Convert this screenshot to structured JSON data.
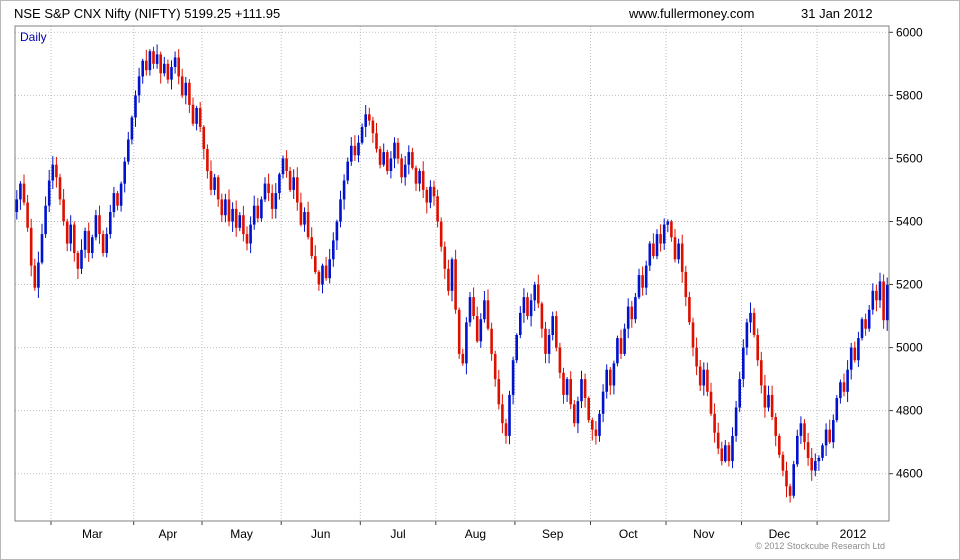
{
  "header": {
    "title": "NSE S&P CNX Nifty (NIFTY) 5199.25 +111.95",
    "site": "www.fullermoney.com",
    "date": "31 Jan 2012"
  },
  "chart_data": {
    "type": "candlestick",
    "title": "NSE S&P CNX Nifty (NIFTY)",
    "interval": "Daily",
    "last_price": 5199.25,
    "change": 111.95,
    "copyright": "© 2012 Stockcube Research Ltd",
    "up_color": "#0012cc",
    "down_color": "#dd1000",
    "grid_color": "#bdbdbd",
    "axis_color": "#808080",
    "ylim": [
      4450,
      6020
    ],
    "yticks": [
      4600,
      4800,
      5000,
      5200,
      5400,
      5600,
      5800,
      6000
    ],
    "months": [
      {
        "label": "Mar",
        "start": 10
      },
      {
        "label": "Apr",
        "start": 33
      },
      {
        "label": "May",
        "start": 52
      },
      {
        "label": "Jun",
        "start": 74
      },
      {
        "label": "Jul",
        "start": 96
      },
      {
        "label": "Aug",
        "start": 117
      },
      {
        "label": "Sep",
        "start": 139
      },
      {
        "label": "Oct",
        "start": 160
      },
      {
        "label": "Nov",
        "start": 181
      },
      {
        "label": "Dec",
        "start": 202
      },
      {
        "label": "2012",
        "start": 223
      }
    ],
    "closes": [
      5470,
      5520,
      5460,
      5380,
      5260,
      5190,
      5270,
      5360,
      5450,
      5530,
      5580,
      5540,
      5470,
      5400,
      5330,
      5390,
      5300,
      5250,
      5310,
      5370,
      5300,
      5350,
      5420,
      5360,
      5300,
      5360,
      5430,
      5490,
      5450,
      5520,
      5590,
      5660,
      5730,
      5800,
      5860,
      5910,
      5880,
      5940,
      5900,
      5930,
      5870,
      5900,
      5850,
      5890,
      5920,
      5860,
      5800,
      5840,
      5770,
      5710,
      5760,
      5700,
      5630,
      5560,
      5500,
      5540,
      5470,
      5420,
      5470,
      5400,
      5440,
      5380,
      5420,
      5360,
      5330,
      5390,
      5450,
      5410,
      5470,
      5520,
      5490,
      5440,
      5490,
      5550,
      5600,
      5560,
      5500,
      5540,
      5460,
      5390,
      5430,
      5350,
      5290,
      5240,
      5200,
      5260,
      5220,
      5280,
      5340,
      5400,
      5470,
      5530,
      5590,
      5640,
      5610,
      5650,
      5700,
      5740,
      5720,
      5680,
      5630,
      5580,
      5620,
      5560,
      5600,
      5650,
      5600,
      5540,
      5580,
      5620,
      5570,
      5520,
      5560,
      5500,
      5460,
      5510,
      5480,
      5400,
      5320,
      5250,
      5180,
      5280,
      5120,
      4980,
      4950,
      5080,
      5160,
      5100,
      5020,
      5090,
      5150,
      5060,
      4980,
      4900,
      4820,
      4760,
      4720,
      4850,
      4960,
      5040,
      5110,
      5160,
      5100,
      5150,
      5200,
      5140,
      5060,
      4980,
      5040,
      5100,
      5000,
      4920,
      4850,
      4900,
      4820,
      4760,
      4830,
      4900,
      4840,
      4770,
      4740,
      4720,
      4790,
      4860,
      4930,
      4880,
      4950,
      5030,
      4980,
      5060,
      5130,
      5090,
      5160,
      5230,
      5190,
      5260,
      5330,
      5290,
      5360,
      5330,
      5390,
      5400,
      5350,
      5280,
      5330,
      5240,
      5160,
      5080,
      5000,
      4940,
      4880,
      4930,
      4860,
      4790,
      4730,
      4680,
      4640,
      4690,
      4640,
      4720,
      4810,
      4900,
      5000,
      5080,
      5110,
      5040,
      4960,
      4880,
      4810,
      4850,
      4780,
      4720,
      4660,
      4610,
      4560,
      4530,
      4630,
      4720,
      4760,
      4700,
      4650,
      4610,
      4640,
      4650,
      4690,
      4740,
      4700,
      4770,
      4840,
      4890,
      4860,
      4930,
      5000,
      4960,
      5030,
      5090,
      5060,
      5120,
      5180,
      5150,
      5210,
      5087,
      5199.25
    ]
  }
}
